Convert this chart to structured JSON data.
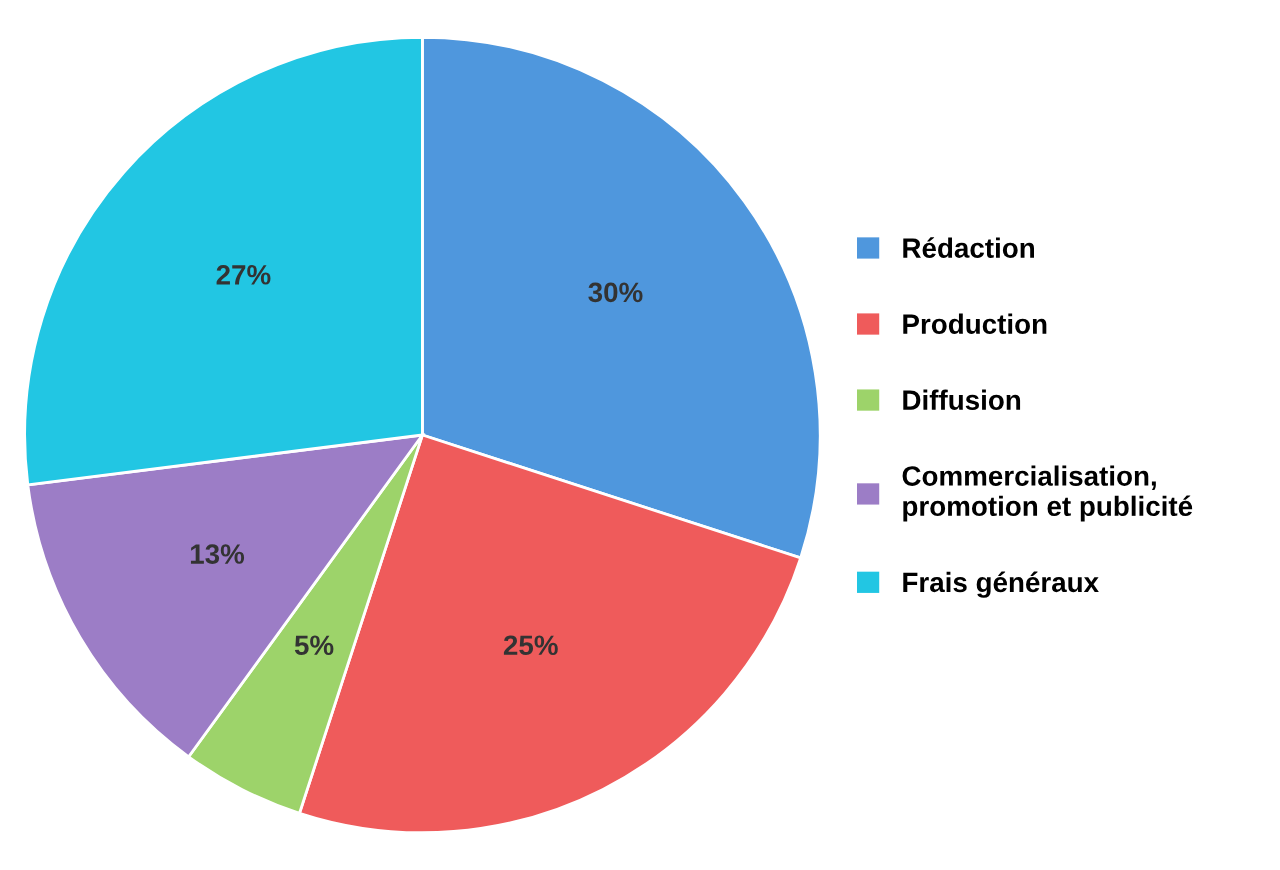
{
  "chart_data": {
    "type": "pie",
    "categories": [
      "Rédaction",
      "Production",
      "Diffusion",
      "Commercialisation,\npromotion et publicité",
      "Frais généraux"
    ],
    "values": [
      30,
      25,
      5,
      13,
      27
    ],
    "value_labels": [
      "30%",
      "25%",
      "5%",
      "13%",
      "27%"
    ],
    "colors": [
      "#4f97dd",
      "#ef5b5b",
      "#9dd36a",
      "#9c7dc6",
      "#22c6e3"
    ],
    "legend": "right"
  }
}
